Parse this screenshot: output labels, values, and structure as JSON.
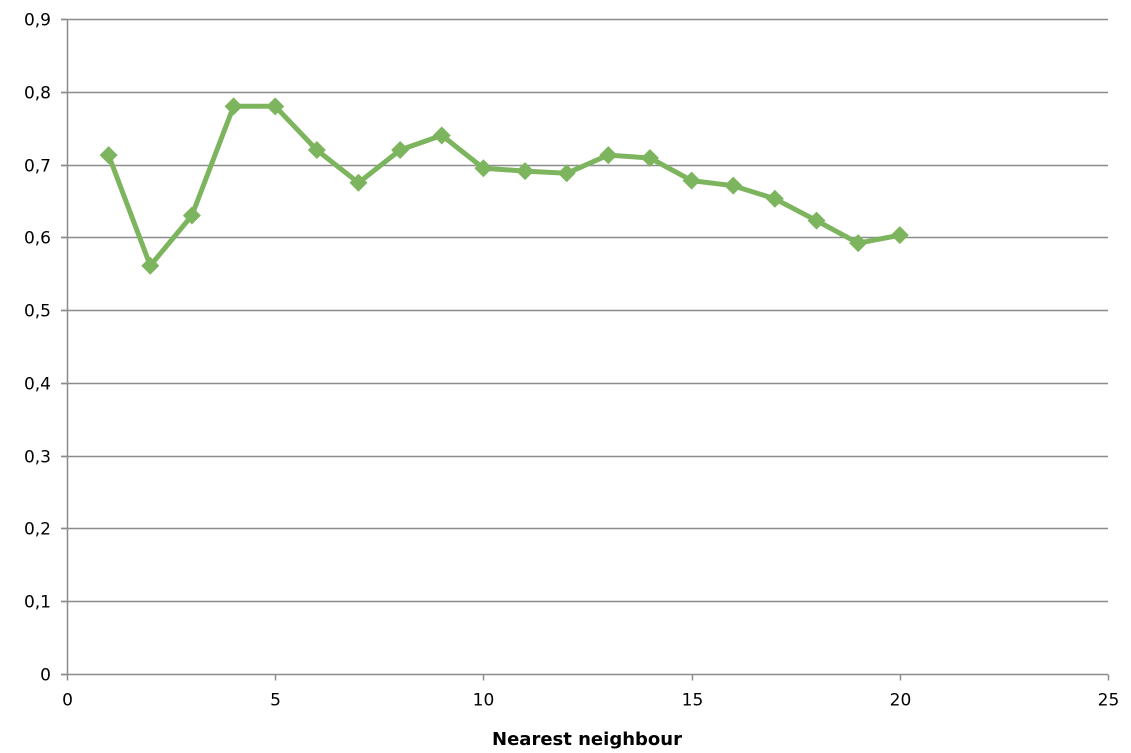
{
  "chart_data": {
    "type": "scatter",
    "title": "",
    "xlabel": "Nearest neighbour",
    "ylabel": "",
    "xlim": [
      0,
      25
    ],
    "ylim": [
      0,
      0.9
    ],
    "x_ticks": [
      0,
      5,
      10,
      15,
      20,
      25
    ],
    "x_tick_labels": [
      "0",
      "5",
      "10",
      "15",
      "20",
      "25"
    ],
    "y_ticks": [
      0,
      0.1,
      0.2,
      0.3,
      0.4,
      0.5,
      0.6,
      0.7,
      0.8,
      0.9
    ],
    "y_tick_labels": [
      "0",
      "0,1",
      "0,2",
      "0,3",
      "0,4",
      "0,5",
      "0,6",
      "0,7",
      "0,8",
      "0,9"
    ],
    "grid": "horizontal",
    "legend": "none",
    "series": [
      {
        "marker": "diamond",
        "line": "straight",
        "color": "#7db55f",
        "x": [
          1,
          2,
          3,
          4,
          5,
          6,
          7,
          8,
          9,
          10,
          11,
          12,
          13,
          14,
          15,
          16,
          17,
          18,
          19,
          20
        ],
        "y": [
          0.713,
          0.561,
          0.63,
          0.78,
          0.78,
          0.72,
          0.675,
          0.72,
          0.74,
          0.695,
          0.691,
          0.688,
          0.713,
          0.709,
          0.678,
          0.671,
          0.653,
          0.623,
          0.592,
          0.603
        ]
      }
    ]
  },
  "colors": {
    "gridline": "#8c8c8c",
    "axis": "#8c8c8c",
    "series": "#7db55f"
  }
}
